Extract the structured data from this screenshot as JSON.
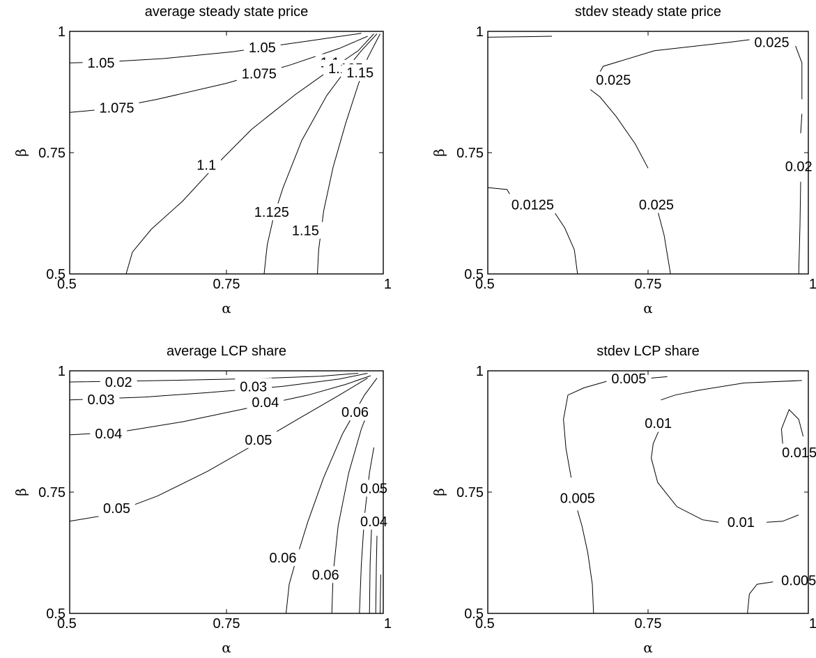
{
  "chart_data": [
    {
      "type": "contour",
      "title": "average steady state price",
      "xlabel": "α",
      "ylabel": "β",
      "xlim": [
        0.5,
        1
      ],
      "ylim": [
        0.5,
        1
      ],
      "xticks": [
        "0.5",
        "0.75",
        "1"
      ],
      "yticks": [
        "0.5",
        "0.75",
        "1"
      ],
      "grid": false,
      "contours": [
        {
          "level": "1.05",
          "points": [
            [
              0.5,
              0.935
            ],
            [
              0.56,
              0.937
            ],
            [
              0.65,
              0.944
            ],
            [
              0.76,
              0.958
            ],
            [
              0.88,
              0.98
            ],
            [
              0.965,
              0.996
            ]
          ]
        },
        {
          "level": "1.075",
          "points": [
            [
              0.5,
              0.833
            ],
            [
              0.56,
              0.84
            ],
            [
              0.64,
              0.86
            ],
            [
              0.75,
              0.893
            ],
            [
              0.85,
              0.93
            ],
            [
              0.93,
              0.965
            ],
            [
              0.975,
              0.99
            ]
          ]
        },
        {
          "level": "1.1",
          "points": [
            [
              0.59,
              0.5
            ],
            [
              0.6,
              0.545
            ],
            [
              0.63,
              0.592
            ],
            [
              0.68,
              0.65
            ],
            [
              0.73,
              0.72
            ],
            [
              0.79,
              0.798
            ],
            [
              0.86,
              0.87
            ],
            [
              0.92,
              0.925
            ],
            [
              0.96,
              0.96
            ],
            [
              0.985,
              0.995
            ]
          ]
        },
        {
          "level": "1.125",
          "points": [
            [
              0.81,
              0.5
            ],
            [
              0.815,
              0.56
            ],
            [
              0.825,
              0.617
            ],
            [
              0.84,
              0.677
            ],
            [
              0.87,
              0.775
            ],
            [
              0.91,
              0.868
            ],
            [
              0.94,
              0.92
            ],
            [
              0.965,
              0.96
            ],
            [
              0.99,
              0.995
            ]
          ]
        },
        {
          "level": "1.15",
          "points": [
            [
              0.895,
              0.5
            ],
            [
              0.897,
              0.55
            ],
            [
              0.905,
              0.63
            ],
            [
              0.92,
              0.72
            ],
            [
              0.94,
              0.81
            ],
            [
              0.96,
              0.89
            ],
            [
              0.975,
              0.945
            ],
            [
              0.985,
              0.97
            ],
            [
              0.995,
              0.995
            ]
          ]
        }
      ],
      "labels": [
        {
          "text": "1.05",
          "x": 0.55,
          "y": 0.935
        },
        {
          "text": "1.05",
          "x": 0.807,
          "y": 0.967
        },
        {
          "text": "1.075",
          "x": 0.575,
          "y": 0.843
        },
        {
          "text": "1.075",
          "x": 0.802,
          "y": 0.913
        },
        {
          "text": "1.1",
          "x": 0.718,
          "y": 0.725
        },
        {
          "text": "1.1",
          "x": 0.915,
          "y": 0.936
        },
        {
          "text": "1.125",
          "x": 0.822,
          "y": 0.628
        },
        {
          "text": "1.125",
          "x": 0.94,
          "y": 0.924
        },
        {
          "text": "1.15",
          "x": 0.876,
          "y": 0.59
        },
        {
          "text": "1.15",
          "x": 0.963,
          "y": 0.915
        }
      ]
    },
    {
      "type": "contour",
      "title": "stdev steady state price",
      "xlabel": "α",
      "ylabel": "β",
      "xlim": [
        0.5,
        1
      ],
      "ylim": [
        0.5,
        1
      ],
      "xticks": [
        "0.5",
        "0.75",
        "1"
      ],
      "yticks": [
        "0.5",
        "0.75",
        "1"
      ],
      "grid": false,
      "contours": [
        {
          "level": "top-left segment",
          "points": [
            [
              0.5,
              0.988
            ],
            [
              0.6,
              0.99
            ]
          ]
        },
        {
          "level": "0.025",
          "points": [
            [
              0.66,
              0.88
            ],
            [
              0.675,
              0.865
            ],
            [
              0.7,
              0.825
            ],
            [
              0.73,
              0.768
            ],
            [
              0.75,
              0.718
            ]
          ]
        },
        {
          "level": "0.025",
          "points": [
            [
              0.765,
              0.63
            ],
            [
              0.775,
              0.58
            ],
            [
              0.785,
              0.5
            ]
          ]
        },
        {
          "level": "0.025",
          "points": [
            [
              0.665,
              0.893
            ],
            [
              0.68,
              0.928
            ],
            [
              0.76,
              0.96
            ],
            [
              0.88,
              0.978
            ],
            [
              0.91,
              0.983
            ]
          ]
        },
        {
          "level": "0.025",
          "points": [
            [
              0.98,
              0.97
            ],
            [
              0.99,
              0.935
            ],
            [
              0.99,
              0.86
            ]
          ]
        },
        {
          "level": "0.0125",
          "points": [
            [
              0.5,
              0.678
            ],
            [
              0.53,
              0.674
            ],
            [
              0.534,
              0.665
            ]
          ]
        },
        {
          "level": "0.0125",
          "points": [
            [
              0.605,
              0.625
            ],
            [
              0.62,
              0.595
            ],
            [
              0.635,
              0.55
            ],
            [
              0.64,
              0.5
            ]
          ]
        },
        {
          "level": "0.02",
          "points": [
            [
              0.988,
              0.69
            ],
            [
              0.987,
              0.6
            ],
            [
              0.985,
              0.5
            ]
          ]
        },
        {
          "level": "0.02",
          "points": [
            [
              0.988,
              0.79
            ],
            [
              0.99,
              0.83
            ]
          ]
        }
      ],
      "labels": [
        {
          "text": "0.025",
          "x": 0.696,
          "y": 0.9
        },
        {
          "text": "0.025",
          "x": 0.943,
          "y": 0.978
        },
        {
          "text": "0.02",
          "x": 0.985,
          "y": 0.722
        },
        {
          "text": "0.0125",
          "x": 0.57,
          "y": 0.643
        },
        {
          "text": "0.025",
          "x": 0.763,
          "y": 0.643
        }
      ]
    },
    {
      "type": "contour",
      "title": "average LCP share",
      "xlabel": "α",
      "ylabel": "β",
      "xlim": [
        0.5,
        1
      ],
      "ylim": [
        0.5,
        1
      ],
      "xticks": [
        "0.5",
        "0.75",
        "1"
      ],
      "yticks": [
        "0.5",
        "0.75",
        "1"
      ],
      "grid": false,
      "contours": [
        {
          "level": "0.02",
          "points": [
            [
              0.5,
              0.977
            ],
            [
              0.65,
              0.98
            ],
            [
              0.8,
              0.984
            ],
            [
              0.9,
              0.989
            ],
            [
              0.96,
              0.995
            ]
          ]
        },
        {
          "level": "0.03",
          "points": [
            [
              0.5,
              0.94
            ],
            [
              0.62,
              0.946
            ],
            [
              0.72,
              0.955
            ],
            [
              0.84,
              0.968
            ],
            [
              0.93,
              0.983
            ],
            [
              0.975,
              0.995
            ]
          ]
        },
        {
          "level": "0.04",
          "points": [
            [
              0.5,
              0.868
            ],
            [
              0.58,
              0.874
            ],
            [
              0.68,
              0.895
            ],
            [
              0.78,
              0.922
            ],
            [
              0.88,
              0.95
            ],
            [
              0.94,
              0.972
            ],
            [
              0.98,
              0.99
            ]
          ]
        },
        {
          "level": "0.05",
          "points": [
            [
              0.5,
              0.69
            ],
            [
              0.56,
              0.703
            ],
            [
              0.64,
              0.742
            ],
            [
              0.72,
              0.793
            ],
            [
              0.8,
              0.852
            ],
            [
              0.87,
              0.905
            ],
            [
              0.93,
              0.95
            ],
            [
              0.975,
              0.985
            ]
          ]
        },
        {
          "level": "0.06",
          "points": [
            [
              0.845,
              0.5
            ],
            [
              0.85,
              0.56
            ],
            [
              0.862,
              0.615
            ],
            [
              0.88,
              0.69
            ],
            [
              0.905,
              0.78
            ],
            [
              0.935,
              0.87
            ],
            [
              0.97,
              0.95
            ],
            [
              0.99,
              0.985
            ]
          ]
        },
        {
          "level": "0.06",
          "points": [
            [
              0.918,
              0.5
            ],
            [
              0.92,
              0.58
            ],
            [
              0.928,
              0.68
            ],
            [
              0.945,
              0.79
            ],
            [
              0.965,
              0.88
            ],
            [
              0.98,
              0.93
            ]
          ]
        },
        {
          "level": "0.06",
          "points": [
            [
              0.962,
              0.5
            ],
            [
              0.965,
              0.6
            ],
            [
              0.97,
              0.7
            ],
            [
              0.978,
              0.79
            ],
            [
              0.985,
              0.842
            ]
          ]
        },
        {
          "level": "0.05",
          "points": [
            [
              0.978,
              0.5
            ],
            [
              0.979,
              0.6
            ],
            [
              0.982,
              0.7
            ]
          ]
        },
        {
          "level": "0.04",
          "points": [
            [
              0.988,
              0.5
            ],
            [
              0.989,
              0.6
            ],
            [
              0.99,
              0.66
            ]
          ]
        },
        {
          "level": "0.03",
          "points": [
            [
              0.995,
              0.5
            ],
            [
              0.996,
              0.58
            ]
          ]
        }
      ],
      "labels": [
        {
          "text": "0.02",
          "x": 0.578,
          "y": 0.977
        },
        {
          "text": "0.03",
          "x": 0.55,
          "y": 0.941
        },
        {
          "text": "0.03",
          "x": 0.793,
          "y": 0.968
        },
        {
          "text": "0.04",
          "x": 0.562,
          "y": 0.871
        },
        {
          "text": "0.04",
          "x": 0.812,
          "y": 0.935
        },
        {
          "text": "0.05",
          "x": 0.575,
          "y": 0.717
        },
        {
          "text": "0.05",
          "x": 0.801,
          "y": 0.858
        },
        {
          "text": "0.06",
          "x": 0.955,
          "y": 0.915
        },
        {
          "text": "0.06",
          "x": 0.84,
          "y": 0.615
        },
        {
          "text": "0.06",
          "x": 0.908,
          "y": 0.58
        },
        {
          "text": "0.05",
          "x": 0.985,
          "y": 0.758
        },
        {
          "text": "0.04",
          "x": 0.985,
          "y": 0.69
        }
      ]
    },
    {
      "type": "contour",
      "title": "stdev LCP share",
      "xlabel": "α",
      "ylabel": "β",
      "xlim": [
        0.5,
        1
      ],
      "ylim": [
        0.5,
        1
      ],
      "xticks": [
        "0.5",
        "0.75",
        "1"
      ],
      "yticks": [
        "0.5",
        "0.75",
        "1"
      ],
      "grid": false,
      "contours": [
        {
          "level": "0.005",
          "points": [
            [
              0.665,
              0.5
            ],
            [
              0.663,
              0.56
            ],
            [
              0.656,
              0.625
            ],
            [
              0.647,
              0.68
            ],
            [
              0.64,
              0.712
            ]
          ]
        },
        {
          "level": "0.005",
          "points": [
            [
              0.63,
              0.78
            ],
            [
              0.622,
              0.84
            ],
            [
              0.618,
              0.9
            ],
            [
              0.625,
              0.95
            ],
            [
              0.65,
              0.965
            ],
            [
              0.69,
              0.98
            ]
          ]
        },
        {
          "level": "0.005",
          "points": [
            [
              0.755,
              0.985
            ],
            [
              0.78,
              0.988
            ]
          ]
        },
        {
          "level": "0.01",
          "points": [
            [
              0.77,
              0.94
            ],
            [
              0.792,
              0.95
            ],
            [
              0.83,
              0.96
            ],
            [
              0.9,
              0.975
            ],
            [
              0.99,
              0.98
            ]
          ]
        },
        {
          "level": "0.01",
          "points": [
            [
              0.766,
              0.874
            ],
            [
              0.758,
              0.85
            ],
            [
              0.755,
              0.82
            ],
            [
              0.765,
              0.77
            ],
            [
              0.795,
              0.72
            ],
            [
              0.835,
              0.693
            ],
            [
              0.86,
              0.688
            ]
          ]
        },
        {
          "level": "0.01",
          "points": [
            [
              0.935,
              0.688
            ],
            [
              0.96,
              0.69
            ],
            [
              0.985,
              0.703
            ]
          ]
        },
        {
          "level": "0.015",
          "points": [
            [
              0.96,
              0.85
            ],
            [
              0.958,
              0.88
            ],
            [
              0.97,
              0.92
            ],
            [
              0.985,
              0.9
            ],
            [
              0.992,
              0.865
            ]
          ]
        },
        {
          "level": "0.005",
          "points": [
            [
              0.905,
              0.5
            ],
            [
              0.908,
              0.54
            ],
            [
              0.92,
              0.56
            ],
            [
              0.945,
              0.565
            ]
          ]
        }
      ],
      "labels": [
        {
          "text": "0.005",
          "x": 0.72,
          "y": 0.984
        },
        {
          "text": "0.01",
          "x": 0.766,
          "y": 0.892
        },
        {
          "text": "0.015",
          "x": 0.986,
          "y": 0.832
        },
        {
          "text": "0.005",
          "x": 0.64,
          "y": 0.738
        },
        {
          "text": "0.01",
          "x": 0.895,
          "y": 0.688
        },
        {
          "text": "0.005",
          "x": 0.985,
          "y": 0.568
        }
      ]
    }
  ]
}
